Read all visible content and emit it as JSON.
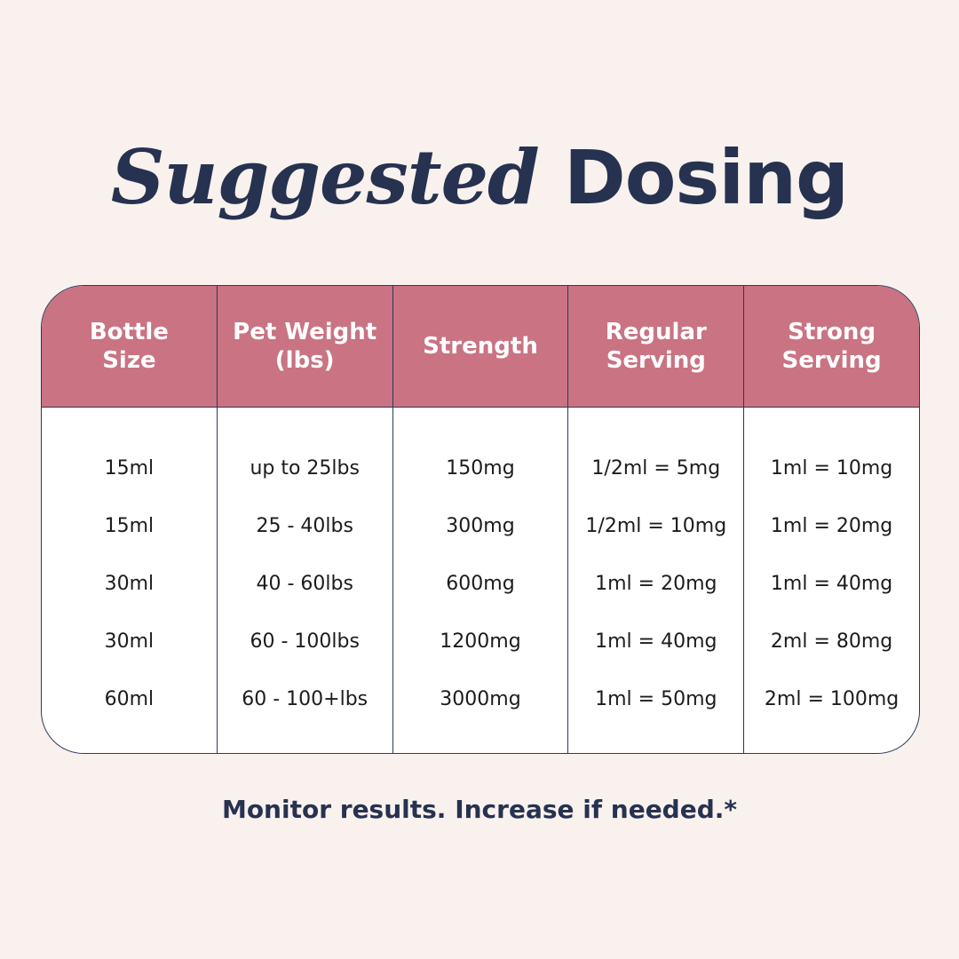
{
  "title": {
    "italic": "Suggested",
    "bold": "Dosing"
  },
  "table": {
    "columns": [
      {
        "header": "Bottle\nSize",
        "cells": [
          "15ml",
          "15ml",
          "30ml",
          "30ml",
          "60ml"
        ]
      },
      {
        "header": "Pet Weight\n(lbs)",
        "cells": [
          "up to 25lbs",
          "25 - 40lbs",
          "40 - 60lbs",
          "60 - 100lbs",
          "60 - 100+lbs"
        ]
      },
      {
        "header": "Strength",
        "cells": [
          "150mg",
          "300mg",
          "600mg",
          "1200mg",
          "3000mg"
        ]
      },
      {
        "header": "Regular\nServing",
        "cells": [
          "1/2ml = 5mg",
          "1/2ml = 10mg",
          "1ml = 20mg",
          "1ml = 40mg",
          "1ml = 50mg"
        ]
      },
      {
        "header": "Strong\nServing",
        "cells": [
          "1ml = 10mg",
          "1ml = 20mg",
          "1ml = 40mg",
          "2ml = 80mg",
          "2ml = 100mg"
        ]
      }
    ]
  },
  "footer": "Monitor results. Increase if needed.*",
  "colors": {
    "header": "#c97383",
    "text": "#26324f",
    "background": "#f9f1ee"
  }
}
